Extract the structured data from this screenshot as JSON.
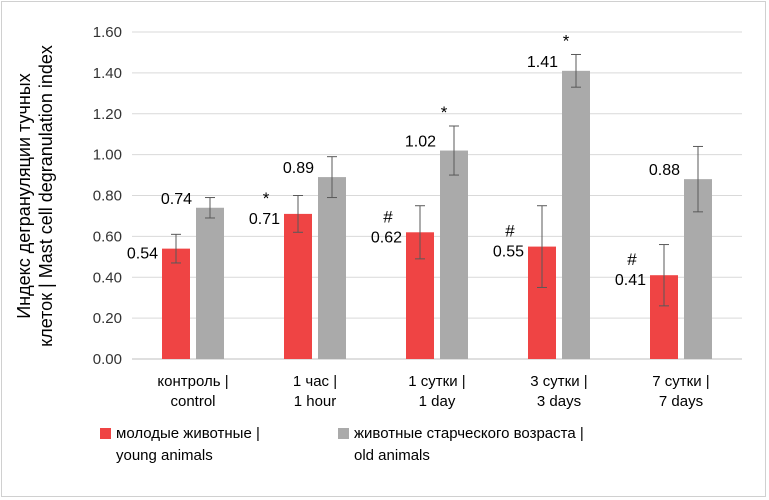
{
  "chart_data": {
    "type": "bar",
    "ylabel_lines": [
      "Индекс дегрануляции тучных",
      "клеток | Mast cell degranulation index"
    ],
    "ylim": [
      0,
      1.6
    ],
    "yticks": [
      "0.00",
      "0.20",
      "0.40",
      "0.60",
      "0.80",
      "1.00",
      "1.20",
      "1.40",
      "1.60"
    ],
    "grid": true,
    "legend_position": "bottom",
    "categories": [
      [
        "контроль |",
        "control"
      ],
      [
        "1 час |",
        "1 hour"
      ],
      [
        "1 сутки |",
        "1 day"
      ],
      [
        "3 сутки |",
        "3 days"
      ],
      [
        "7 сутки |",
        "7 days"
      ]
    ],
    "series": [
      {
        "name_lines": [
          "молодые животные |",
          "young animals"
        ],
        "color": "#ef4444",
        "values": [
          0.54,
          0.71,
          0.62,
          0.55,
          0.41
        ],
        "value_labels": [
          "0.54",
          "0.71",
          "0.62",
          "0.55",
          "0.41"
        ],
        "error": [
          0.07,
          0.09,
          0.13,
          0.2,
          0.15
        ],
        "marks": [
          "",
          "*",
          "#",
          "#",
          "#"
        ]
      },
      {
        "name_lines": [
          "животные старческого возраста |",
          "old animals"
        ],
        "color": "#aaaaaa",
        "values": [
          0.74,
          0.89,
          1.02,
          1.41,
          0.88
        ],
        "value_labels": [
          "0.74",
          "0.89",
          "1.02",
          "1.41",
          "0.88"
        ],
        "error": [
          0.05,
          0.1,
          0.12,
          0.08,
          0.16
        ],
        "marks": [
          "",
          "",
          "*",
          "*",
          ""
        ]
      }
    ]
  }
}
